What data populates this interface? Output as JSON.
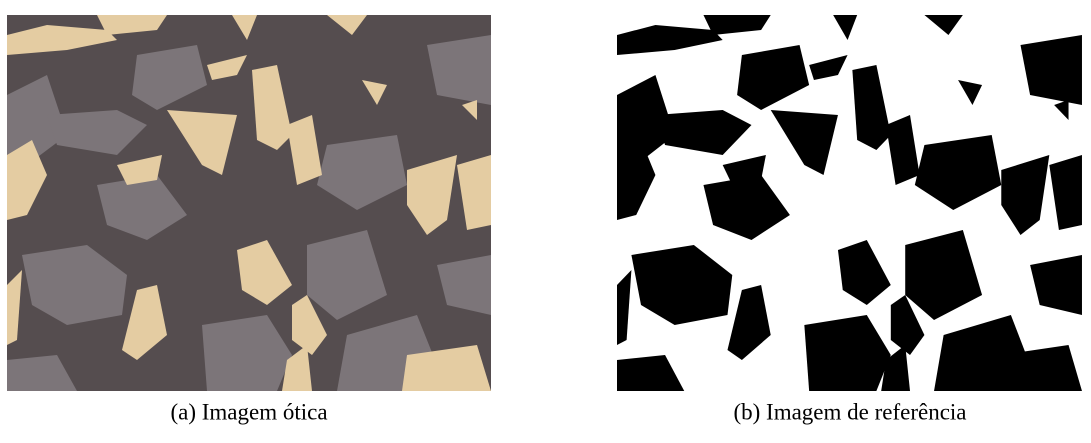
{
  "figure": {
    "panels": [
      {
        "caption": "(a) Imagem ótica"
      },
      {
        "caption": "(b) Imagem de referência"
      }
    ]
  }
}
